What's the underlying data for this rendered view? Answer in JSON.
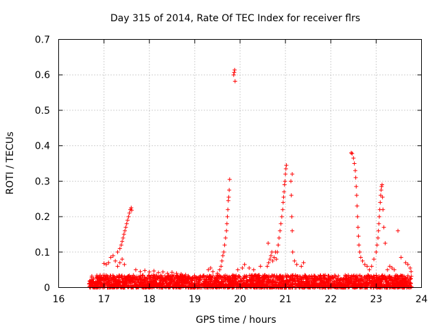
{
  "chart_data": {
    "type": "scatter",
    "title": "Day 315 of 2014, Rate Of TEC Index for receiver flrs",
    "xlabel": "GPS time / hours",
    "ylabel": "ROTI / TECUs",
    "xlim": [
      16,
      24
    ],
    "ylim": [
      0,
      0.7
    ],
    "grid": true,
    "marker": "+",
    "color": "#ff0000",
    "xticks": [
      "16",
      "17",
      "18",
      "19",
      "20",
      "21",
      "22",
      "23",
      "24"
    ],
    "yticks": [
      "0",
      "0.1",
      "0.2",
      "0.3",
      "0.4",
      "0.5",
      "0.6",
      "0.7"
    ],
    "baseline": {
      "x_range": [
        16.67,
        23.78
      ],
      "y_range": [
        0.0,
        0.035
      ],
      "count": 2600
    },
    "series": [
      {
        "name": "ROTI",
        "points": [
          [
            17.0,
            0.068
          ],
          [
            17.05,
            0.065
          ],
          [
            17.1,
            0.07
          ],
          [
            17.15,
            0.085
          ],
          [
            17.2,
            0.09
          ],
          [
            17.25,
            0.075
          ],
          [
            17.3,
            0.06
          ],
          [
            17.35,
            0.07
          ],
          [
            17.4,
            0.08
          ],
          [
            17.45,
            0.065
          ],
          [
            17.3,
            0.1
          ],
          [
            17.35,
            0.11
          ],
          [
            17.38,
            0.12
          ],
          [
            17.4,
            0.13
          ],
          [
            17.42,
            0.14
          ],
          [
            17.44,
            0.15
          ],
          [
            17.46,
            0.16
          ],
          [
            17.48,
            0.17
          ],
          [
            17.5,
            0.18
          ],
          [
            17.52,
            0.19
          ],
          [
            17.54,
            0.2
          ],
          [
            17.56,
            0.21
          ],
          [
            17.58,
            0.22
          ],
          [
            17.6,
            0.225
          ],
          [
            17.61,
            0.218
          ],
          [
            17.7,
            0.05
          ],
          [
            17.8,
            0.045
          ],
          [
            17.9,
            0.048
          ],
          [
            18.0,
            0.044
          ],
          [
            18.1,
            0.047
          ],
          [
            18.2,
            0.042
          ],
          [
            18.3,
            0.044
          ],
          [
            18.4,
            0.04
          ],
          [
            18.5,
            0.043
          ],
          [
            18.6,
            0.04
          ],
          [
            18.7,
            0.038
          ],
          [
            18.8,
            0.036
          ],
          [
            19.3,
            0.05
          ],
          [
            19.35,
            0.055
          ],
          [
            19.4,
            0.045
          ],
          [
            19.5,
            0.04
          ],
          [
            19.55,
            0.05
          ],
          [
            19.58,
            0.06
          ],
          [
            19.6,
            0.075
          ],
          [
            19.62,
            0.09
          ],
          [
            19.64,
            0.1
          ],
          [
            19.66,
            0.12
          ],
          [
            19.68,
            0.14
          ],
          [
            19.7,
            0.16
          ],
          [
            19.71,
            0.18
          ],
          [
            19.72,
            0.2
          ],
          [
            19.73,
            0.22
          ],
          [
            19.74,
            0.245
          ],
          [
            19.75,
            0.255
          ],
          [
            19.76,
            0.275
          ],
          [
            19.77,
            0.305
          ],
          [
            19.86,
            0.6
          ],
          [
            19.87,
            0.607
          ],
          [
            19.88,
            0.614
          ],
          [
            19.89,
            0.582
          ],
          [
            19.95,
            0.05
          ],
          [
            20.05,
            0.055
          ],
          [
            20.1,
            0.065
          ],
          [
            20.2,
            0.055
          ],
          [
            20.3,
            0.05
          ],
          [
            20.45,
            0.06
          ],
          [
            20.6,
            0.06
          ],
          [
            20.63,
            0.07
          ],
          [
            20.66,
            0.08
          ],
          [
            20.68,
            0.09
          ],
          [
            20.7,
            0.1
          ],
          [
            20.72,
            0.075
          ],
          [
            20.75,
            0.085
          ],
          [
            20.78,
            0.1
          ],
          [
            20.8,
            0.08
          ],
          [
            20.62,
            0.125
          ],
          [
            20.82,
            0.1
          ],
          [
            20.84,
            0.12
          ],
          [
            20.86,
            0.14
          ],
          [
            20.88,
            0.16
          ],
          [
            20.9,
            0.18
          ],
          [
            20.92,
            0.2
          ],
          [
            20.94,
            0.22
          ],
          [
            20.95,
            0.24
          ],
          [
            20.96,
            0.255
          ],
          [
            20.97,
            0.27
          ],
          [
            20.98,
            0.29
          ],
          [
            20.99,
            0.3
          ],
          [
            21.0,
            0.32
          ],
          [
            21.01,
            0.335
          ],
          [
            21.02,
            0.345
          ],
          [
            21.12,
            0.3
          ],
          [
            21.15,
            0.32
          ],
          [
            21.13,
            0.26
          ],
          [
            21.14,
            0.2
          ],
          [
            21.15,
            0.16
          ],
          [
            21.16,
            0.1
          ],
          [
            21.2,
            0.075
          ],
          [
            21.25,
            0.065
          ],
          [
            21.35,
            0.06
          ],
          [
            21.4,
            0.07
          ],
          [
            22.45,
            0.38
          ],
          [
            22.47,
            0.378
          ],
          [
            22.5,
            0.365
          ],
          [
            22.52,
            0.35
          ],
          [
            22.54,
            0.33
          ],
          [
            22.55,
            0.31
          ],
          [
            22.56,
            0.285
          ],
          [
            22.57,
            0.26
          ],
          [
            22.58,
            0.23
          ],
          [
            22.59,
            0.2
          ],
          [
            22.6,
            0.17
          ],
          [
            22.61,
            0.145
          ],
          [
            22.62,
            0.12
          ],
          [
            22.64,
            0.1
          ],
          [
            22.66,
            0.085
          ],
          [
            22.7,
            0.075
          ],
          [
            22.75,
            0.065
          ],
          [
            22.8,
            0.06
          ],
          [
            22.85,
            0.05
          ],
          [
            22.9,
            0.06
          ],
          [
            22.95,
            0.08
          ],
          [
            23.0,
            0.1
          ],
          [
            23.02,
            0.12
          ],
          [
            23.04,
            0.14
          ],
          [
            23.05,
            0.16
          ],
          [
            23.06,
            0.18
          ],
          [
            23.07,
            0.2
          ],
          [
            23.08,
            0.22
          ],
          [
            23.09,
            0.24
          ],
          [
            23.1,
            0.26
          ],
          [
            23.11,
            0.275
          ],
          [
            23.12,
            0.285
          ],
          [
            23.13,
            0.29
          ],
          [
            23.14,
            0.255
          ],
          [
            23.15,
            0.22
          ],
          [
            23.17,
            0.17
          ],
          [
            23.2,
            0.125
          ],
          [
            23.25,
            0.05
          ],
          [
            23.3,
            0.06
          ],
          [
            23.35,
            0.055
          ],
          [
            23.4,
            0.05
          ],
          [
            23.48,
            0.16
          ],
          [
            23.55,
            0.085
          ],
          [
            23.65,
            0.07
          ],
          [
            23.7,
            0.065
          ],
          [
            23.75,
            0.055
          ],
          [
            23.77,
            0.045
          ]
        ]
      }
    ]
  }
}
